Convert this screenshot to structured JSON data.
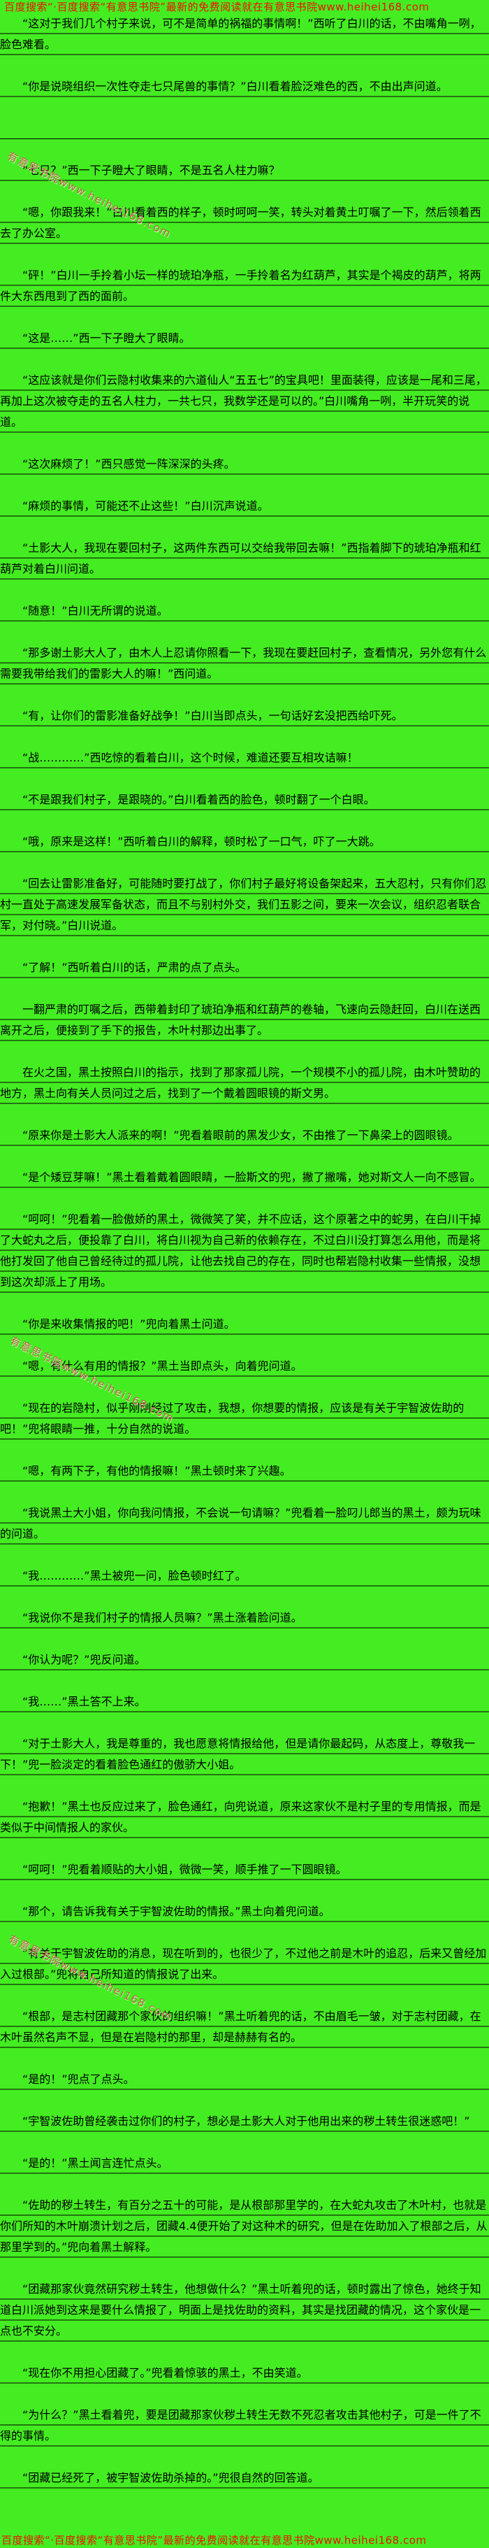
{
  "colors": {
    "background_green": "#44ed21",
    "promo_red": "#ee1100",
    "body_text": "#000000",
    "watermark_red": "#cd544c"
  },
  "header": {
    "promo_text": "百度搜索“·百度搜索“有意思书院”最新的免费阅读就在有意思书院www.heihei168.com"
  },
  "footer": {
    "promo_text": "百度搜索“·百度搜索“有意思书院”最新的免费阅读就在有意思书院www.heihei168.com"
  },
  "watermarks": [
    "有意思书院www.heihei168.com",
    "有意思书院www.heihei168.com",
    "有意思书院www.heihei168.com"
  ],
  "content": {
    "blank_rule_after_index": 1,
    "paragraphs": [
      "“这对于我们几个村子来说，可不是简单的祸福的事情啊！”西听了白川的话，不由嘴角一咧，脸色难看。",
      "“你是说晓组织一次性夺走七只尾兽的事情？”白川看着脸泛难色的西，不由出声问道。",
      "“七只？”西一下子瞪大了眼睛，不是五名人柱力嘛？",
      "“嗯，你跟我来！”白川看着西的样子，顿时呵呵一笑，转头对着黄土叮嘱了一下，然后领着西去了办公室。",
      "“砰！”白川一手拎着小坛一样的琥珀净瓶，一手拎着名为红葫芦，其实是个褐皮的葫芦，将两件大东西甩到了西的面前。",
      "“这是……”西一下子瞪大了眼睛。",
      "“这应该就是你们云隐村收集来的六道仙人“五五七”的宝具吧！里面装得，应该是一尾和三尾，再加上这次被夺走的五名人柱力，一共七只，我数学还是可以的。”白川嘴角一咧，半开玩笑的说道。",
      "“这次麻烦了！”西只感觉一阵深深的头疼。",
      "“麻烦的事情，可能还不止这些！”白川沉声说道。",
      "“土影大人，我现在要回村子，这两件东西可以交给我带回去嘛！”西指着脚下的琥珀净瓶和红葫芦对着白川问道。",
      "“随意！”白川无所谓的说道。",
      "“那多谢土影大人了，由木人上忍请你照看一下，我现在要赶回村子，查看情况，另外您有什么需要我带给我们的雷影大人的嘛！”西问道。",
      "“有，让你们的雷影准备好战争！”白川当即点头，一句话好玄没把西给吓死。",
      "“战…………”西吃惊的看着白川，这个时候，难道还要互相攻诘嘛！",
      "“不是跟我们村子，是跟晓的。”白川看着西的脸色，顿时翻了一个白眼。",
      "“哦，原来是这样！”西听着白川的解释，顿时松了一口气，吓了一大跳。",
      "“回去让雷影准备好，可能随时要打战了，你们村子最好将设备架起来，五大忍村，只有你们忍村一直处于高速发展军备状态，而且不与别村外交，我们五影之间，要来一次会议，组织忍者联合军，对付晓。”白川说道。",
      "“了解！”西听着白川的话，严肃的点了点头。",
      "一翻严肃的叮嘱之后，西带着封印了琥珀净瓶和红葫芦的卷轴，飞速向云隐赶回，白川在送西离开之后，便接到了手下的报告，木叶村那边出事了。",
      "在火之国，黑土按照白川的指示，找到了那家孤儿院，一个规模不小的孤儿院，由木叶赞助的地方，黑土向有关人员问过之后，找到了一个戴着圆眼镜的斯文男。",
      "“原来你是土影大人派来的啊！”兜看着眼前的黑发少女，不由推了一下鼻梁上的圆眼镜。",
      "“是个矮豆芽嘛！”黑土看着戴着圆眼睛，一脸斯文的兜，撇了撇嘴，她对斯文人一向不感冒。",
      "“呵呵！”兜看着一脸傲娇的黑土，微微笑了笑，并不应话，这个原著之中的蛇男，在白川干掉了大蛇丸之后，便投靠了白川，将白川视为自己新的依赖存在，不过白川没打算怎么用他，而是将他打发回了他自己曾经待过的孤儿院，让他去找自己的存在，同时也帮岩隐村收集一些情报，没想到这次却派上了用场。",
      "“你是来收集情报的吧！”兜向着黑土问道。",
      "“嗯，有什么有用的情报？”黑土当即点头，向着兜问道。",
      "“现在的岩隐村，似乎刚刚经过了攻击，我想，你想要的情报，应该是有关于宇智波佐助的吧！”兜将眼睛一推，十分自然的说道。",
      "“嗯，有两下子，有他的情报嘛！”黑土顿时来了兴趣。",
      "“我说黑土大小姐，你向我问情报，不会说一句请嘛？”兜看着一脸叼儿郎当的黑土，颇为玩味的问道。",
      "“我…………”黑土被兜一问，脸色顿时红了。",
      "“我说你不是我们村子的情报人员嘛？”黑土涨着脸问道。",
      "“你认为呢？”兜反问道。",
      "“我……”黑土答不上来。",
      "“对于土影大人，我是尊重的，我也愿意将情报给他，但是请你最起码，从态度上，尊敬我一下！”兜一脸淡定的看着脸色通红的傲骄大小姐。",
      "“抱歉！”黑土也反应过来了，脸色通红，向兜说道，原来这家伙不是村子里的专用情报，而是类似于中间情报人的家伙。",
      "“呵呵！”兜看着顺贴的大小姐，微微一笑，顺手推了一下圆眼镜。",
      "“那个，请告诉我有关于宇智波佐助的情报。”黑土向着兜问道。",
      "“有关于宇智波佐助的消息，现在听到的，也很少了，不过他之前是木叶的追忍，后来又曾经加入过根部。”兜将自己所知道的情报说了出来。",
      "“根部，是志村团藏那个家伙的组织嘛！”黑土听着兜的话，不由眉毛一皱，对于志村团藏，在木叶虽然名声不显，但是在岩隐村的那里，却是赫赫有名的。",
      "“是的！”兜点了点头。",
      "“宇智波佐助曾经袭击过你们的村子，想必是土影大人对于他用出来的秽土转生很迷惑吧！”",
      "“是的！”黑土闻言连忙点头。",
      "“佐助的秽土转生，有百分之五十的可能，是从根部那里学的，在大蛇丸攻击了木叶村，也就是你们所知的木叶崩溃计划之后，团藏4.4便开始了对这种术的研究，但是在佐助加入了根部之后，从那里学到的。”兜向着黑土解释。",
      "“团藏那家伙竟然研究秽土转生，他想做什么？”黑土听着兜的话，顿时露出了惊色，她终于知道白川派她到这来是要什么情报了，明面上是找佐助的资料，其实是找团藏的情况，这个家伙是一点也不安分。",
      "“现在你不用担心团藏了。”兜看着惊骇的黑土，不由笑道。",
      "“为什么？”黑土看着兜，要是团藏那家伙秽土转生无数不死忍者攻击其他村子，可是一件了不得的事情。",
      "“团藏已经死了，被宇智波佐助杀掉的。”兜很自然的回答道。"
    ]
  }
}
